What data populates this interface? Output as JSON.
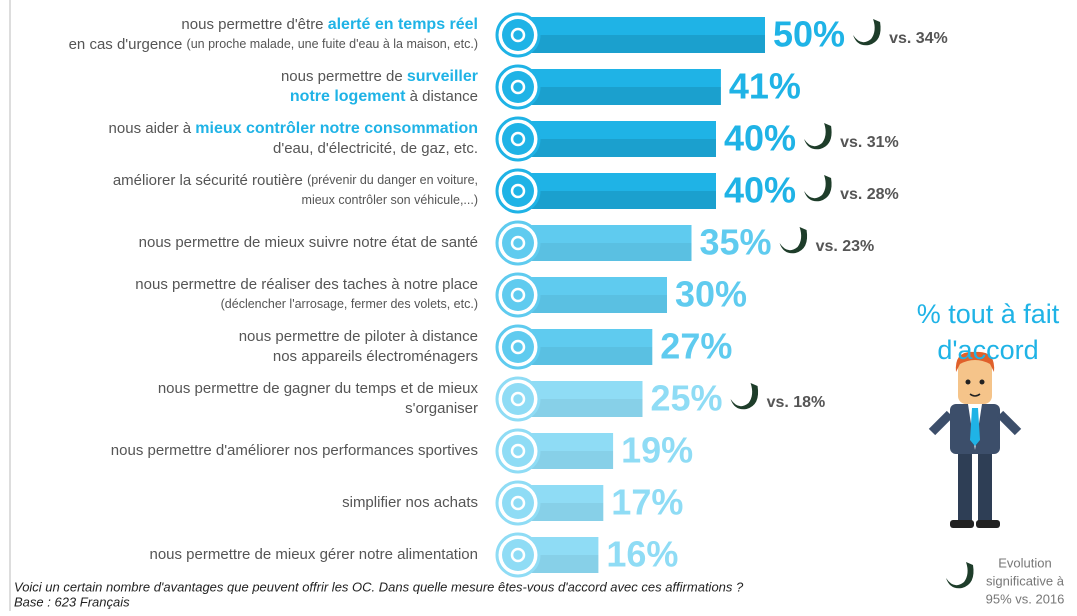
{
  "chart_data": {
    "type": "hbar",
    "categories": [
      {
        "lines": [
          [
            {
              "text": "nous permettre d'être ",
              "style": "plain"
            },
            {
              "text": "alerté en temps réel",
              "style": "bold"
            }
          ],
          [
            {
              "text": "en cas d'urgence ",
              "style": "plain"
            },
            {
              "text": "(un proche malade, une fuite d'eau à la maison, etc.)",
              "style": "small"
            }
          ]
        ]
      },
      {
        "lines": [
          [
            {
              "text": "nous permettre de ",
              "style": "plain"
            },
            {
              "text": "surveiller",
              "style": "bold"
            }
          ],
          [
            {
              "text": "notre logement",
              "style": "bold"
            },
            {
              "text": " à distance",
              "style": "plain"
            }
          ]
        ]
      },
      {
        "lines": [
          [
            {
              "text": "nous aider à ",
              "style": "plain"
            },
            {
              "text": "mieux contrôler notre consommation",
              "style": "bold"
            }
          ],
          [
            {
              "text": "d'eau, d'électricité, de gaz, etc.",
              "style": "plain"
            }
          ]
        ]
      },
      {
        "lines": [
          [
            {
              "text": "améliorer la sécurité routière ",
              "style": "plain"
            },
            {
              "text": "(prévenir du danger en voiture,",
              "style": "small"
            }
          ],
          [
            {
              "text": "mieux contrôler son véhicule,...)",
              "style": "small"
            }
          ]
        ]
      },
      {
        "lines": [
          [
            {
              "text": "nous permettre de mieux suivre notre état de santé",
              "style": "plain"
            }
          ]
        ]
      },
      {
        "lines": [
          [
            {
              "text": "nous permettre de réaliser des taches à notre place",
              "style": "plain"
            }
          ],
          [
            {
              "text": "(déclencher l'arrosage, fermer des volets, etc.)",
              "style": "small"
            }
          ]
        ]
      },
      {
        "lines": [
          [
            {
              "text": "nous permettre de piloter à distance",
              "style": "plain"
            }
          ],
          [
            {
              "text": "nos appareils électroménagers",
              "style": "plain"
            }
          ]
        ]
      },
      {
        "lines": [
          [
            {
              "text": "nous permettre de gagner du temps et de mieux",
              "style": "plain"
            }
          ],
          [
            {
              "text": "s'organiser",
              "style": "plain"
            }
          ]
        ]
      },
      {
        "lines": [
          [
            {
              "text": "nous permettre d'améliorer nos performances sportives",
              "style": "plain"
            }
          ]
        ]
      },
      {
        "lines": [
          [
            {
              "text": "simplifier nos achats",
              "style": "plain"
            }
          ]
        ]
      },
      {
        "lines": [
          [
            {
              "text": "nous permettre de mieux gérer notre alimentation",
              "style": "plain"
            }
          ]
        ]
      }
    ],
    "values": [
      50,
      41,
      40,
      40,
      35,
      30,
      27,
      25,
      19,
      17,
      16
    ],
    "value_labels": [
      "50%",
      "41%",
      "40%",
      "40%",
      "35%",
      "30%",
      "27%",
      "25%",
      "19%",
      "17%",
      "16%"
    ],
    "colors": [
      "#1fb3e6",
      "#1fb3e6",
      "#1fb3e6",
      "#1fb3e6",
      "#5fcbef",
      "#5fcbef",
      "#5fcbef",
      "#8fdcf5",
      "#8fdcf5",
      "#8fdcf5",
      "#8fdcf5"
    ],
    "previous_values": [
      34,
      null,
      31,
      28,
      23,
      null,
      null,
      18,
      null,
      null,
      null
    ],
    "previous_labels": [
      "vs. 34%",
      null,
      "vs. 31%",
      "vs. 28%",
      "vs. 23%",
      null,
      null,
      "vs. 18%",
      null,
      null,
      null
    ],
    "side_title": [
      "% tout à fait",
      "d'accord"
    ],
    "legend": [
      "Evolution",
      "significative à",
      "95% vs. 2016"
    ],
    "footnotes": [
      "Voici un certain nombre d'avantages que peuvent offrir les OC. Dans quelle mesure êtes-vous d'accord avec ces affirmations ?",
      "Base : 623 Français"
    ]
  }
}
